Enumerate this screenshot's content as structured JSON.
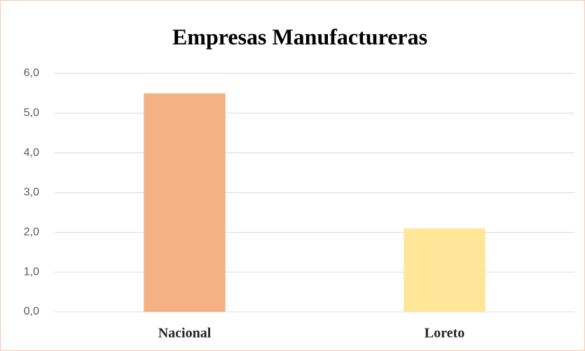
{
  "chart_data": {
    "type": "bar",
    "title": "Empresas Manufactureras",
    "categories": [
      "Nacional",
      "Loreto"
    ],
    "values": [
      5.5,
      2.1
    ],
    "colors": [
      "#f4b183",
      "#ffe699"
    ],
    "ylim": [
      0,
      6
    ],
    "yticks": [
      {
        "value": 0,
        "label": "0,0"
      },
      {
        "value": 1,
        "label": "1,0"
      },
      {
        "value": 2,
        "label": "2,0"
      },
      {
        "value": 3,
        "label": "3,0"
      },
      {
        "value": 4,
        "label": "4,0"
      },
      {
        "value": 5,
        "label": "5,0"
      },
      {
        "value": 6,
        "label": "6,0"
      }
    ],
    "grid": true
  }
}
